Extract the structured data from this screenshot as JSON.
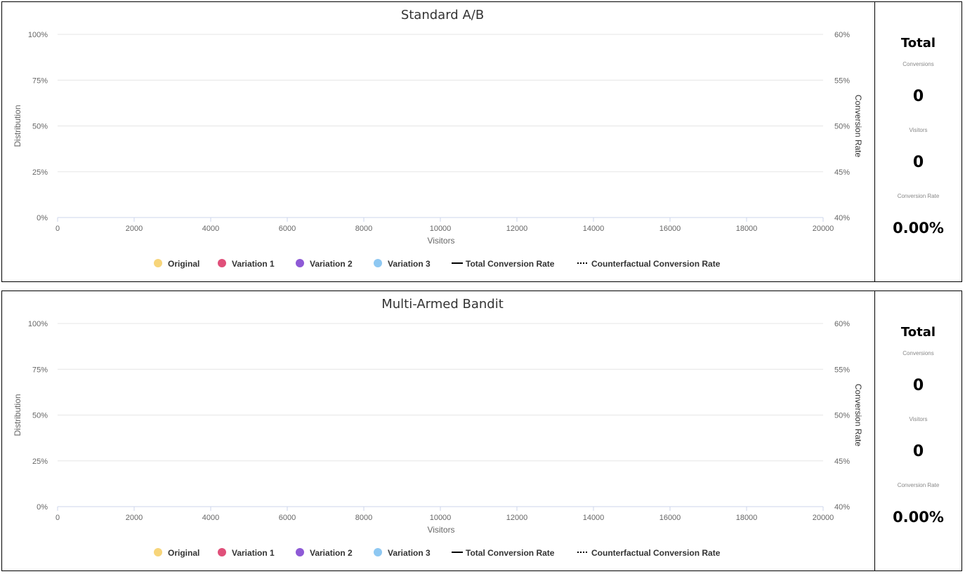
{
  "chart_data": [
    {
      "type": "area",
      "title": "Standard A/B",
      "xlabel": "Visitors",
      "ylabel": "Distribution",
      "y2label": "Conversion Rate",
      "xlim": [
        0,
        20000
      ],
      "ylim": [
        0,
        100
      ],
      "y2lim": [
        40,
        60
      ],
      "x_ticks": [
        "0",
        "2000",
        "4000",
        "6000",
        "8000",
        "10000",
        "12000",
        "14000",
        "16000",
        "18000",
        "20000"
      ],
      "y_ticks": [
        "0%",
        "25%",
        "50%",
        "75%",
        "100%"
      ],
      "y2_ticks": [
        "40%",
        "45%",
        "50%",
        "55%",
        "60%"
      ],
      "grid": true,
      "legend_position": "bottom",
      "series": [
        {
          "name": "Original",
          "color": "#f7d57a",
          "marker": "dot",
          "values": []
        },
        {
          "name": "Variation 1",
          "color": "#e0507a",
          "marker": "dot",
          "values": []
        },
        {
          "name": "Variation 2",
          "color": "#8e5ad6",
          "marker": "dot",
          "values": []
        },
        {
          "name": "Variation 3",
          "color": "#8ec8f2",
          "marker": "dot",
          "values": []
        },
        {
          "name": "Total Conversion Rate",
          "color": "#000000",
          "marker": "solid-line",
          "values": []
        },
        {
          "name": "Counterfactual Conversion Rate",
          "color": "#000000",
          "marker": "dotted-line",
          "values": []
        }
      ],
      "totals": {
        "title": "Total",
        "conversions_label": "Conversions",
        "conversions": "0",
        "visitors_label": "Visitors",
        "visitors": "0",
        "rate_label": "Conversion Rate",
        "rate": "0.00%"
      }
    },
    {
      "type": "area",
      "title": "Multi-Armed Bandit",
      "xlabel": "Visitors",
      "ylabel": "Distribution",
      "y2label": "Conversion Rate",
      "xlim": [
        0,
        20000
      ],
      "ylim": [
        0,
        100
      ],
      "y2lim": [
        40,
        60
      ],
      "x_ticks": [
        "0",
        "2000",
        "4000",
        "6000",
        "8000",
        "10000",
        "12000",
        "14000",
        "16000",
        "18000",
        "20000"
      ],
      "y_ticks": [
        "0%",
        "25%",
        "50%",
        "75%",
        "100%"
      ],
      "y2_ticks": [
        "40%",
        "45%",
        "50%",
        "55%",
        "60%"
      ],
      "grid": true,
      "legend_position": "bottom",
      "series": [
        {
          "name": "Original",
          "color": "#f7d57a",
          "marker": "dot",
          "values": []
        },
        {
          "name": "Variation 1",
          "color": "#e0507a",
          "marker": "dot",
          "values": []
        },
        {
          "name": "Variation 2",
          "color": "#8e5ad6",
          "marker": "dot",
          "values": []
        },
        {
          "name": "Variation 3",
          "color": "#8ec8f2",
          "marker": "dot",
          "values": []
        },
        {
          "name": "Total Conversion Rate",
          "color": "#000000",
          "marker": "solid-line",
          "values": []
        },
        {
          "name": "Counterfactual Conversion Rate",
          "color": "#000000",
          "marker": "dotted-line",
          "values": []
        }
      ],
      "totals": {
        "title": "Total",
        "conversions_label": "Conversions",
        "conversions": "0",
        "visitors_label": "Visitors",
        "visitors": "0",
        "rate_label": "Conversion Rate",
        "rate": "0.00%"
      }
    }
  ]
}
